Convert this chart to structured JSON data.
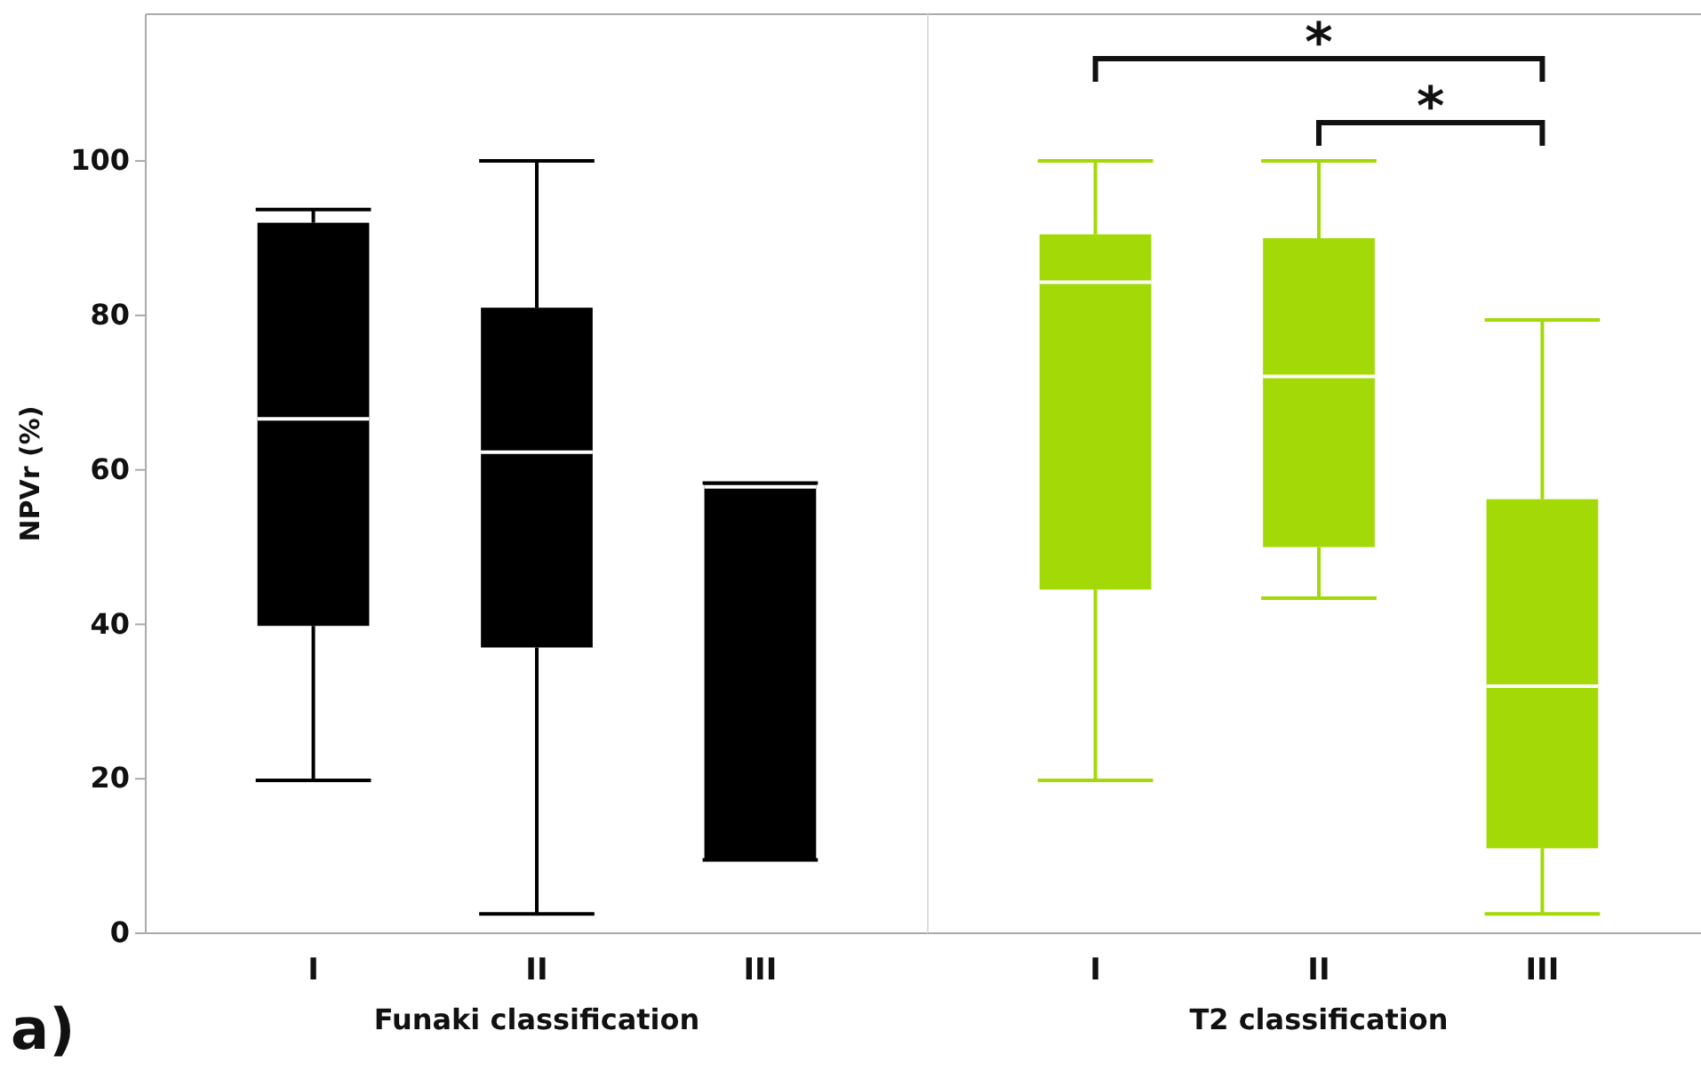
{
  "chart_data": [
    {
      "type": "box",
      "ylabel": "NPVr (%)",
      "xlabel": "Funaki classification",
      "categories": [
        "I",
        "II",
        "III"
      ],
      "ylim": [
        0,
        119
      ],
      "yticks": [
        0,
        20,
        40,
        60,
        80,
        100
      ],
      "grid": false,
      "annotations": [
        "a)"
      ],
      "series": [
        {
          "color": "#000000",
          "boxes": [
            {
              "low": 19.8,
              "q1": 39.8,
              "median": 66.6,
              "q3": 92.0,
              "high": 93.7
            },
            {
              "low": 2.5,
              "q1": 37.0,
              "median": 62.3,
              "q3": 81.0,
              "high": 100
            },
            {
              "low": 9.5,
              "q1": 9.5,
              "median": 57.8,
              "q3": 58.3,
              "high": 58.3
            }
          ]
        }
      ]
    },
    {
      "type": "box",
      "xlabel": "T2 classification",
      "categories": [
        "I",
        "II",
        "III"
      ],
      "ylim": [
        0,
        119
      ],
      "tick_labels": "x",
      "grid": false,
      "annotations": [
        "*",
        "*"
      ],
      "series": [
        {
          "color": "#a3d907",
          "boxes": [
            {
              "low": 19.8,
              "q1": 44.5,
              "median": 84.3,
              "q3": 90.5,
              "high": 100
            },
            {
              "low": 43.4,
              "q1": 50.0,
              "median": 72.1,
              "q3": 90.0,
              "high": 100
            },
            {
              "low": 2.5,
              "q1": 11.0,
              "median": 32.0,
              "q3": 56.2,
              "high": 79.4
            }
          ]
        }
      ]
    }
  ]
}
